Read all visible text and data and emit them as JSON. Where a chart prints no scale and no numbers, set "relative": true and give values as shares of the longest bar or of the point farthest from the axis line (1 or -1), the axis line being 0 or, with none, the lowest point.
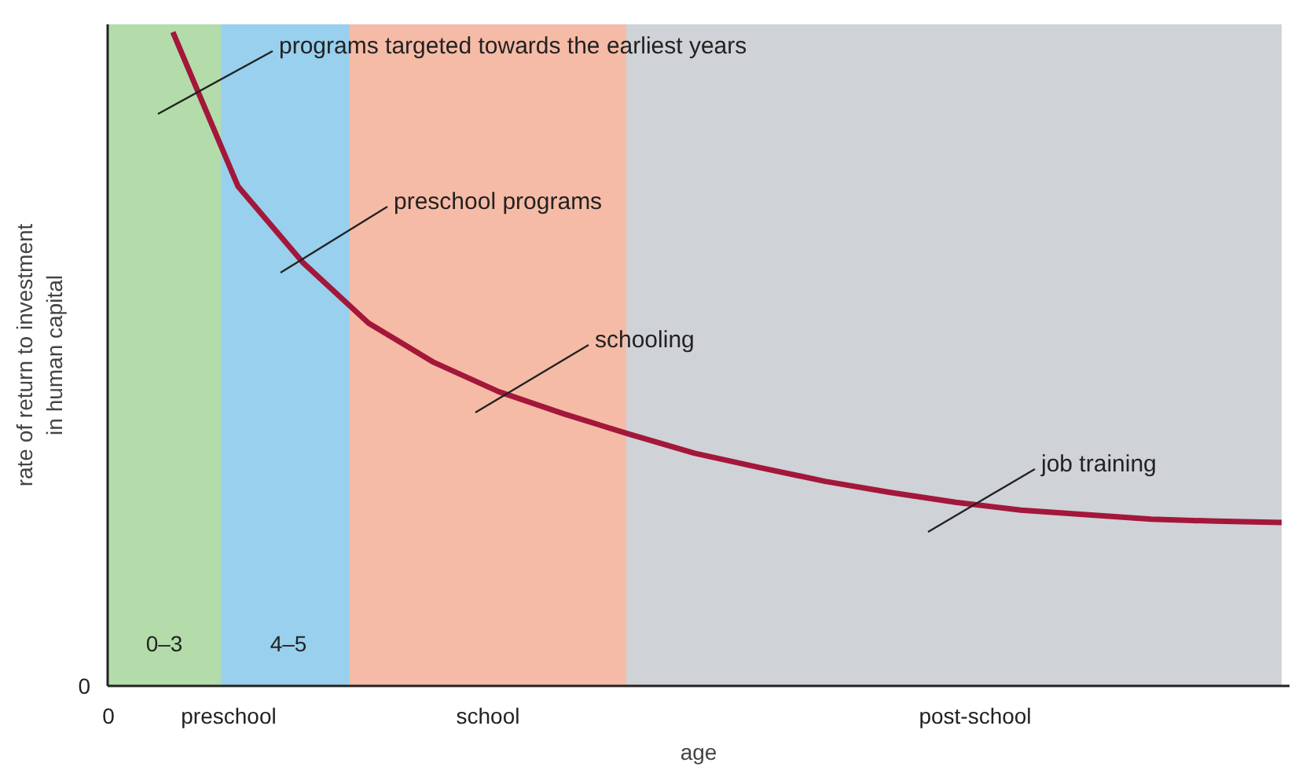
{
  "chart_data": {
    "type": "line",
    "relative": true,
    "xlabel": "age",
    "ylabel": "rate of return to investment\nin human capital",
    "categories": [
      null,
      null,
      null,
      null,
      null,
      null,
      null,
      null,
      null,
      null,
      null,
      null,
      null,
      null,
      null,
      null,
      null,
      null,
      null
    ],
    "series": [
      {
        "color": "#a3173a",
        "values": [
          null,
          1.0,
          0.764,
          0.647,
          0.555,
          0.495,
          0.45,
          0.416,
          0.385,
          0.356,
          0.334,
          0.313,
          0.296,
          0.281,
          0.269,
          0.262,
          0.255,
          0.252,
          0.25
        ]
      }
    ],
    "annotations": [
      "0",
      "0",
      "preschool",
      "school",
      "post-school",
      "0–3",
      "4–5",
      "programs targeted towards the earliest years",
      "preschool programs",
      "schooling",
      "job training"
    ],
    "line_style": "solid",
    "marker": "none"
  }
}
